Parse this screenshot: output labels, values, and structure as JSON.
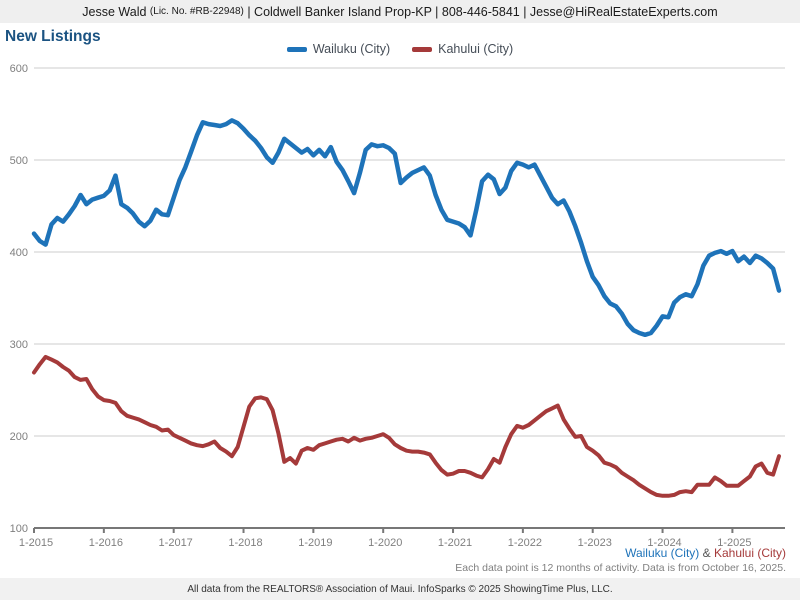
{
  "header": {
    "agent": "Jesse Wald ",
    "license": "(Lic. No. #RB-22948)",
    "rest": " | Coldwell Banker Island Prop-KP | 808-446-5841 | Jesse@HiRealEstateExperts.com"
  },
  "title": "New Listings",
  "colors": {
    "title_text": "#1b5382",
    "wailuku": "#1e73b9",
    "kahului": "#a53a3a",
    "gridline": "#cccccc",
    "axis": "#777777",
    "tick_text": "#7f7f7f"
  },
  "legend": [
    {
      "label": "Wailuku (City)",
      "color": "#1e73b9"
    },
    {
      "label": "Kahului (City)",
      "color": "#a53a3a"
    }
  ],
  "footer": {
    "series_wailuku": "Wailuku (City)",
    "series_amp": " & ",
    "series_kahului": "Kahului (City)",
    "data_note": "Each data point is 12 months of activity. Data is from October 16, 2025.",
    "attribution": "All data from the REALTORS® Association of Maui. InfoSparks © 2025 ShowingTime Plus, LLC."
  },
  "chart_data": {
    "type": "line",
    "title": "New Listings",
    "x_start": "1-2015",
    "x_end": "9-2025",
    "x_interval": "monthly (12-month rolling activity)",
    "x_tick_labels": [
      "1-2015",
      "1-2016",
      "1-2017",
      "1-2018",
      "1-2019",
      "1-2020",
      "1-2021",
      "1-2022",
      "1-2023",
      "1-2024",
      "1-2025"
    ],
    "y_ticks": [
      100,
      200,
      300,
      400,
      500,
      600
    ],
    "ylim": [
      100,
      600
    ],
    "grid": "horizontal",
    "legend_position": "top-center",
    "series": [
      {
        "name": "Wailuku (City)",
        "color": "#1e73b9",
        "values": [
          420,
          412,
          408,
          430,
          437,
          433,
          441,
          450,
          462,
          452,
          457,
          459,
          461,
          467,
          483,
          452,
          448,
          442,
          433,
          428,
          434,
          446,
          441,
          440,
          459,
          478,
          492,
          509,
          527,
          541,
          539,
          538,
          537,
          539,
          543,
          540,
          534,
          527,
          521,
          513,
          503,
          497,
          508,
          523,
          518,
          513,
          508,
          512,
          505,
          511,
          504,
          514,
          498,
          489,
          477,
          464,
          486,
          511,
          517,
          515,
          516,
          513,
          507,
          475,
          481,
          486,
          489,
          492,
          483,
          462,
          446,
          435,
          433,
          431,
          427,
          418,
          446,
          477,
          484,
          479,
          463,
          470,
          488,
          497,
          495,
          492,
          495,
          483,
          471,
          459,
          452,
          456,
          444,
          428,
          410,
          390,
          373,
          364,
          352,
          344,
          341,
          333,
          322,
          315,
          312,
          310,
          312,
          320,
          330,
          329,
          345,
          351,
          354,
          352,
          365,
          385,
          396,
          399,
          401,
          398,
          401,
          390,
          395,
          388,
          396,
          393,
          388,
          382,
          358
        ]
      },
      {
        "name": "Kahului (City)",
        "color": "#a53a3a",
        "values": [
          269,
          278,
          286,
          283,
          280,
          275,
          271,
          264,
          261,
          262,
          251,
          243,
          239,
          238,
          236,
          227,
          222,
          220,
          218,
          215,
          212,
          210,
          206,
          207,
          201,
          198,
          195,
          192,
          190,
          189,
          191,
          194,
          187,
          183,
          178,
          188,
          210,
          232,
          241,
          242,
          240,
          228,
          203,
          172,
          176,
          170,
          184,
          187,
          185,
          190,
          192,
          194,
          196,
          197,
          194,
          198,
          195,
          197,
          198,
          200,
          202,
          198,
          191,
          187,
          184,
          183,
          183,
          182,
          180,
          171,
          163,
          158,
          159,
          162,
          162,
          160,
          157,
          155,
          164,
          175,
          171,
          188,
          202,
          211,
          209,
          212,
          217,
          222,
          227,
          230,
          233,
          218,
          208,
          199,
          200,
          188,
          184,
          179,
          171,
          169,
          166,
          160,
          156,
          152,
          147,
          143,
          139,
          136,
          135,
          135,
          136,
          139,
          140,
          139,
          147,
          147,
          147,
          155,
          151,
          146,
          146,
          146,
          151,
          156,
          167,
          170,
          160,
          158,
          178
        ]
      }
    ]
  }
}
